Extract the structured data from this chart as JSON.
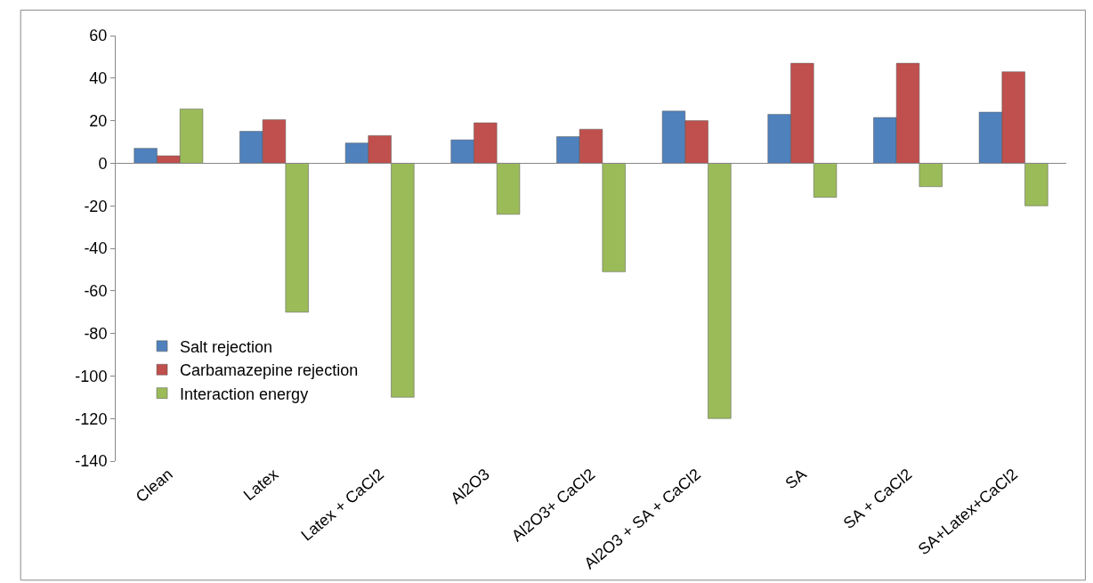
{
  "chart_data": {
    "type": "bar",
    "categories": [
      "Clean",
      "Latex",
      "Latex + CaCl2",
      "Al2O3",
      "Al2O3+ CaCl2",
      "Al2O3 + SA + CaCl2",
      "SA",
      "SA + CaCl2",
      "SA+Latex+CaCl2"
    ],
    "series": [
      {
        "name": "Salt rejection",
        "color": "#4f81bd",
        "values": [
          7,
          15,
          9.5,
          11,
          12.5,
          24.5,
          23,
          21.5,
          24
        ]
      },
      {
        "name": "Carbamazepine rejection",
        "color": "#c0504d",
        "values": [
          3.5,
          20.5,
          13,
          19,
          16,
          20,
          47,
          47,
          43
        ]
      },
      {
        "name": "Interaction energy",
        "color": "#9bbb59",
        "values": [
          25.5,
          -70,
          -110,
          -24,
          -51,
          -120,
          -16,
          -11,
          -20
        ]
      }
    ],
    "ylim": [
      -140,
      60
    ],
    "yticks": [
      -140,
      -120,
      -100,
      -80,
      -60,
      -40,
      -20,
      0,
      20,
      40,
      60
    ],
    "legend": "bottom left"
  }
}
